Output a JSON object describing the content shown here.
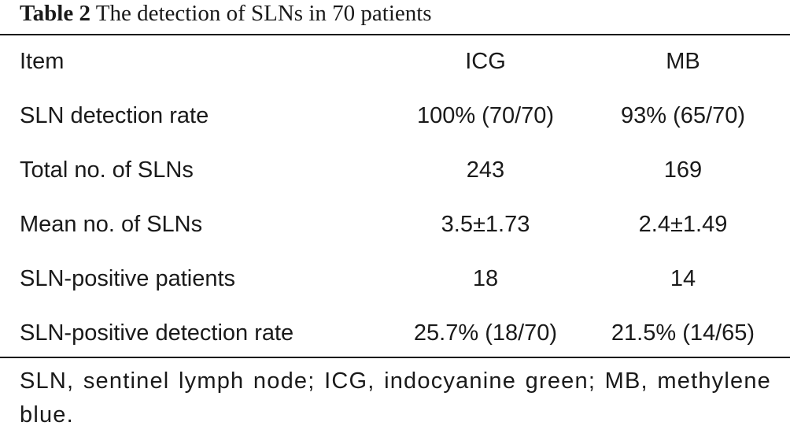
{
  "caption": {
    "label": "Table 2",
    "title": "The detection of SLNs in 70 patients"
  },
  "table": {
    "headers": [
      "Item",
      "ICG",
      "MB"
    ],
    "rows": [
      [
        "SLN detection rate",
        "100% (70/70)",
        "93% (65/70)"
      ],
      [
        "Total no. of SLNs",
        "243",
        "169"
      ],
      [
        "Mean no. of SLNs",
        "3.5±1.73",
        "2.4±1.49"
      ],
      [
        "SLN-positive patients",
        "18",
        "14"
      ],
      [
        "SLN-positive detection rate",
        "25.7% (18/70)",
        "21.5% (14/65)"
      ]
    ]
  },
  "footnote": "SLN, sentinel lymph node; ICG, indocyanine green; MB, methylene blue."
}
